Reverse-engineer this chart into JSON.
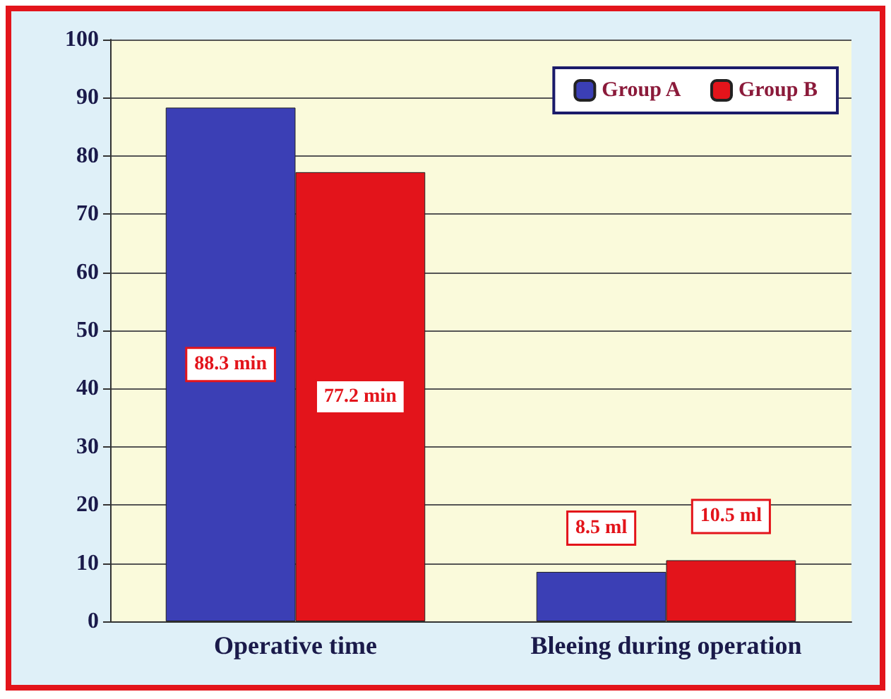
{
  "chart_data": {
    "type": "bar",
    "categories": [
      "Operative time",
      "Bleeing during operation"
    ],
    "series": [
      {
        "name": "Group A",
        "color": "#3b3fb5",
        "values": [
          88.3,
          8.5
        ],
        "value_labels": [
          "88.3 min",
          "8.5 ml"
        ]
      },
      {
        "name": "Group B",
        "color": "#e3141b",
        "values": [
          77.2,
          10.5
        ],
        "value_labels": [
          "77.2 min",
          "10.5 ml"
        ]
      }
    ],
    "ylim": [
      0,
      100
    ],
    "yticks": [
      0,
      10,
      20,
      30,
      40,
      50,
      60,
      70,
      80,
      90,
      100
    ],
    "grid": "y",
    "legend": "top right"
  }
}
